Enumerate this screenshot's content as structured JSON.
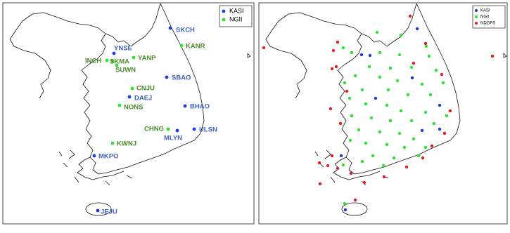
{
  "left_map": {
    "legend": [
      {
        "name": "KASI",
        "color": "#1f3bd6",
        "label_color": "#3d63c4",
        "stations": [
          "SKCH",
          "YNSE",
          "SBAO",
          "DAEJ",
          "BHAO",
          "MLYN",
          "ULSN",
          "MKPO",
          "JEJU"
        ]
      },
      {
        "name": "NGII",
        "color": "#2fe22f",
        "label_color": "#4a8a2a",
        "stations": [
          "KANR",
          "YANP",
          "INCH",
          "SKMA",
          "SUWN",
          "CNJU",
          "NONS",
          "CHNG",
          "KWNJ"
        ]
      }
    ]
  },
  "right_map": {
    "legend": [
      {
        "name": "KASI",
        "color": "#1f3bd6"
      },
      {
        "name": "NGII",
        "color": "#2fe22f"
      },
      {
        "name": "NDGPS",
        "color": "#e02020"
      }
    ]
  }
}
